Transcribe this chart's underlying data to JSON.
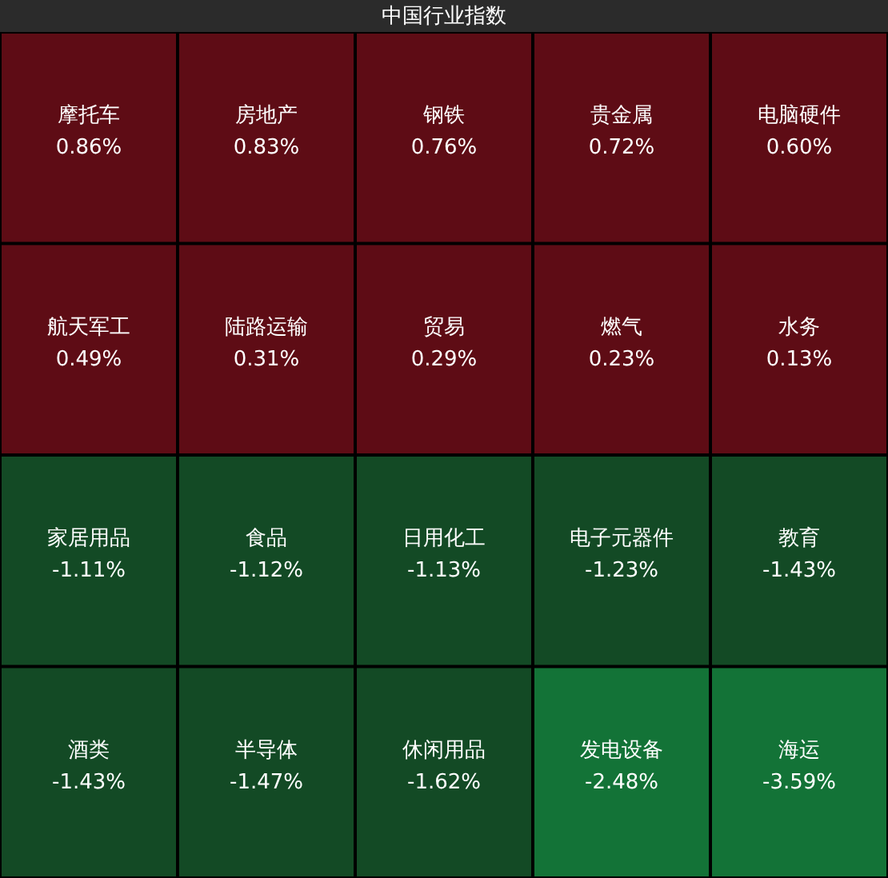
{
  "chart_data": {
    "type": "other",
    "title": "中国行业指数",
    "categories": [
      "摩托车",
      "房地产",
      "钢铁",
      "贵金属",
      "电脑硬件",
      "航天军工",
      "陆路运输",
      "贸易",
      "燃气",
      "水务",
      "家居用品",
      "食品",
      "日用化工",
      "电子元器件",
      "教育",
      "酒类",
      "半导体",
      "休闲用品",
      "发电设备",
      "海运"
    ],
    "values": [
      0.86,
      0.83,
      0.76,
      0.72,
      0.6,
      0.49,
      0.31,
      0.29,
      0.23,
      0.13,
      -1.11,
      -1.12,
      -1.13,
      -1.23,
      -1.43,
      -1.43,
      -1.47,
      -1.62,
      -2.48,
      -3.59
    ],
    "value_labels": [
      "0.86%",
      "0.83%",
      "0.76%",
      "0.72%",
      "0.60%",
      "0.49%",
      "0.31%",
      "0.29%",
      "0.23%",
      "0.13%",
      "-1.11%",
      "-1.12%",
      "-1.13%",
      "-1.23%",
      "-1.43%",
      "-1.43%",
      "-1.47%",
      "-1.62%",
      "-2.48%",
      "-3.59%"
    ],
    "colors": [
      "#5e0c15",
      "#5e0c15",
      "#5e0c15",
      "#5e0c15",
      "#5e0c15",
      "#5e0c15",
      "#5e0c15",
      "#5e0c15",
      "#5e0c15",
      "#5e0c15",
      "#134a25",
      "#134a25",
      "#134a25",
      "#134a25",
      "#134a25",
      "#134a25",
      "#134a25",
      "#134a25",
      "#137337",
      "#137337"
    ]
  }
}
